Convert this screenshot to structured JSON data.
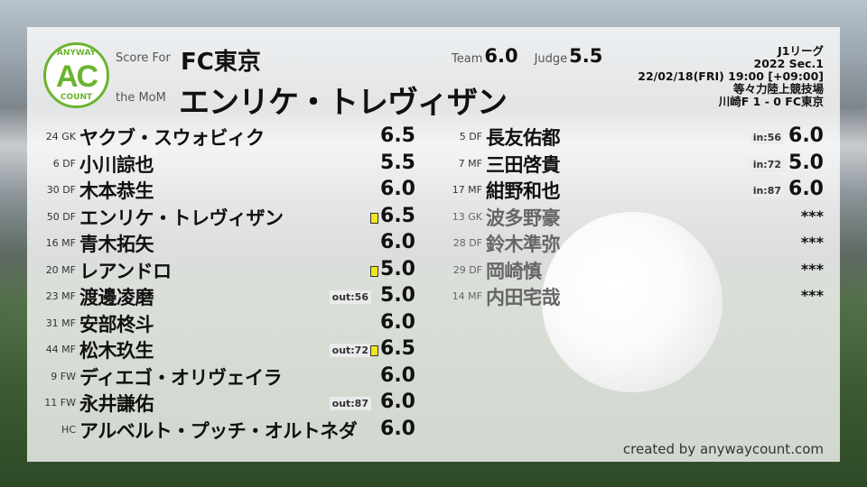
{
  "logo": {
    "top": "ANYWAY",
    "mid": "AC",
    "bottom": "COUNT"
  },
  "header": {
    "score_for_label": "Score For",
    "team": "FC東京",
    "mom_label": "the MoM",
    "mom_name": "エンリケ・トレヴィザン",
    "team_label": "Team",
    "team_score": "6.0",
    "judge_label": "Judge",
    "judge_score": "5.5"
  },
  "match": {
    "league": "J1リーグ",
    "season": "2022 Sec.1",
    "datetime": "22/02/18(FRI) 19:00 [+09:00]",
    "stadium": "等々力陸上競技場",
    "result": "川崎F 1 - 0 FC東京"
  },
  "colors": {
    "accent": "#6ab42e",
    "yellow_card": "#f0e81a"
  },
  "starters": [
    {
      "pos": "24 GK",
      "name": "ヤクブ・スウォビィク",
      "score": "6.5"
    },
    {
      "pos": "6 DF",
      "name": "小川諒也",
      "score": "5.5"
    },
    {
      "pos": "30 DF",
      "name": "木本恭生",
      "score": "6.0"
    },
    {
      "pos": "50 DF",
      "name": "エンリケ・トレヴィザン",
      "score": "6.5",
      "yellow": true
    },
    {
      "pos": "16 MF",
      "name": "青木拓矢",
      "score": "6.0"
    },
    {
      "pos": "20 MF",
      "name": "レアンドロ",
      "score": "5.0",
      "yellow": true
    },
    {
      "pos": "23 MF",
      "name": "渡邊凌磨",
      "score": "5.0",
      "sub": "out:56"
    },
    {
      "pos": "31 MF",
      "name": "安部柊斗",
      "score": "6.0"
    },
    {
      "pos": "44 MF",
      "name": "松木玖生",
      "score": "6.5",
      "sub": "out:72",
      "yellow": true
    },
    {
      "pos": "9 FW",
      "name": "ディエゴ・オリヴェイラ",
      "score": "6.0"
    },
    {
      "pos": "11 FW",
      "name": "永井謙佑",
      "score": "6.0",
      "sub": "out:87"
    },
    {
      "pos": "HC",
      "name": "アルベルト・プッチ・オルトネダ",
      "score": "6.0"
    }
  ],
  "subs": [
    {
      "pos": "5 DF",
      "name": "長友佑都",
      "score": "6.0",
      "sub": "in:56"
    },
    {
      "pos": "7 MF",
      "name": "三田啓貴",
      "score": "5.0",
      "sub": "in:72"
    },
    {
      "pos": "17 MF",
      "name": "紺野和也",
      "score": "6.0",
      "sub": "in:87"
    },
    {
      "pos": "13 GK",
      "name": "波多野豪",
      "score": "***",
      "unused": true
    },
    {
      "pos": "28 DF",
      "name": "鈴木準弥",
      "score": "***",
      "unused": true
    },
    {
      "pos": "29 DF",
      "name": "岡崎慎",
      "score": "***",
      "unused": true
    },
    {
      "pos": "14 MF",
      "name": "内田宅哉",
      "score": "***",
      "unused": true
    }
  ],
  "footer": "created by anywaycount.com"
}
